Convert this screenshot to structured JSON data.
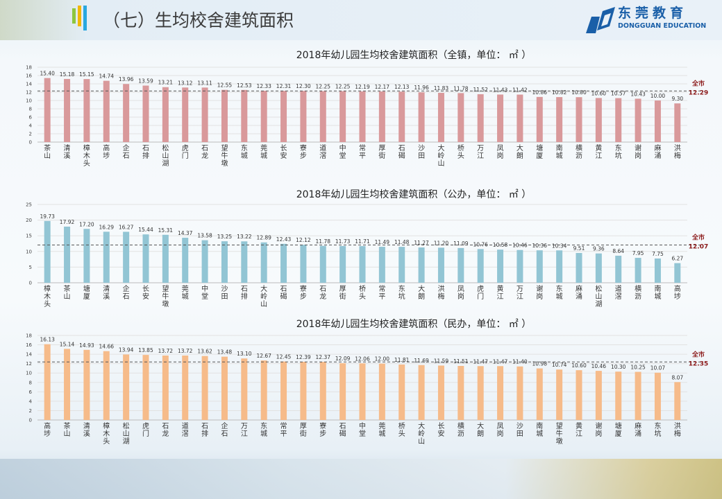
{
  "header": {
    "title": "（七）生均校舍建筑面积",
    "logo_cn": "东莞教育",
    "logo_en": "DONGGUAN EDUCATION"
  },
  "ref_label": "全市",
  "chart_data": [
    {
      "type": "bar",
      "title": "2018年幼儿园生均校舍建筑面积（全镇，单位： ㎡ ）",
      "ylim": [
        0,
        18
      ],
      "ytick_step": 2,
      "color": "#d9999b",
      "reference": {
        "label": "全市",
        "value": 12.29
      },
      "categories": [
        "茶山",
        "清溪",
        "樟木头",
        "高埗",
        "企石",
        "石排",
        "松山湖",
        "虎门",
        "石龙",
        "望牛墩",
        "东城",
        "莞城",
        "长安",
        "寮步",
        "道滘",
        "中堂",
        "常平",
        "厚街",
        "石碣",
        "沙田",
        "大岭山",
        "桥头",
        "万江",
        "凤岗",
        "大朗",
        "塘厦",
        "南城",
        "横沥",
        "黄江",
        "东坑",
        "谢岗",
        "麻涌",
        "洪梅"
      ],
      "values": [
        15.4,
        15.18,
        15.15,
        14.74,
        13.96,
        13.59,
        13.21,
        13.12,
        13.11,
        12.55,
        12.53,
        12.33,
        12.31,
        12.3,
        12.25,
        12.25,
        12.19,
        12.17,
        12.13,
        11.96,
        11.83,
        11.78,
        11.52,
        11.43,
        11.42,
        10.86,
        10.82,
        10.8,
        10.6,
        10.57,
        10.43,
        10.0,
        9.3
      ]
    },
    {
      "type": "bar",
      "title": "2018年幼儿园生均校舍建筑面积（公办，单位： ㎡ ）",
      "ylim": [
        0,
        25
      ],
      "ytick_step": 5,
      "color": "#92c5d4",
      "reference": {
        "label": "全市",
        "value": 12.07
      },
      "categories": [
        "樟木头",
        "茶山",
        "塘厦",
        "清溪",
        "企石",
        "长安",
        "望牛墩",
        "莞城",
        "中堂",
        "沙田",
        "石排",
        "大岭山",
        "石碣",
        "寮步",
        "石龙",
        "厚街",
        "桥头",
        "常平",
        "东坑",
        "大朗",
        "洪梅",
        "凤岗",
        "虎门",
        "黄江",
        "万江",
        "谢岗",
        "东城",
        "麻涌",
        "松山湖",
        "道滘",
        "横沥",
        "南城",
        "高埗"
      ],
      "values": [
        19.73,
        17.92,
        17.2,
        16.29,
        16.27,
        15.44,
        15.31,
        14.37,
        13.58,
        13.25,
        13.22,
        12.89,
        12.43,
        12.12,
        11.78,
        11.73,
        11.71,
        11.49,
        11.48,
        11.27,
        11.2,
        11.09,
        10.76,
        10.58,
        10.46,
        10.36,
        10.34,
        9.51,
        9.36,
        8.64,
        7.95,
        7.75,
        6.27
      ]
    },
    {
      "type": "bar",
      "title": "2018年幼儿园生均校舍建筑面积（民办，单位： ㎡ ）",
      "ylim": [
        0,
        18
      ],
      "ytick_step": 2,
      "color": "#f6bb8a",
      "reference": {
        "label": "全市",
        "value": 12.35
      },
      "categories": [
        "高埗",
        "茶山",
        "清溪",
        "樟木头",
        "松山湖",
        "虎门",
        "石龙",
        "道滘",
        "石排",
        "企石",
        "万江",
        "东城",
        "常平",
        "厚街",
        "寮步",
        "石碣",
        "中堂",
        "莞城",
        "桥头",
        "大岭山",
        "长安",
        "横沥",
        "大朗",
        "凤岗",
        "沙田",
        "南城",
        "望牛墩",
        "黄江",
        "谢岗",
        "塘厦",
        "麻涌",
        "东坑",
        "洪梅"
      ],
      "values": [
        16.13,
        15.14,
        14.93,
        14.66,
        13.94,
        13.85,
        13.72,
        13.72,
        13.62,
        13.48,
        13.1,
        12.67,
        12.45,
        12.39,
        12.37,
        12.09,
        12.06,
        12.0,
        11.81,
        11.69,
        11.59,
        11.51,
        11.47,
        11.47,
        11.4,
        10.98,
        10.74,
        10.6,
        10.46,
        10.3,
        10.25,
        10.07,
        8.07
      ]
    }
  ]
}
